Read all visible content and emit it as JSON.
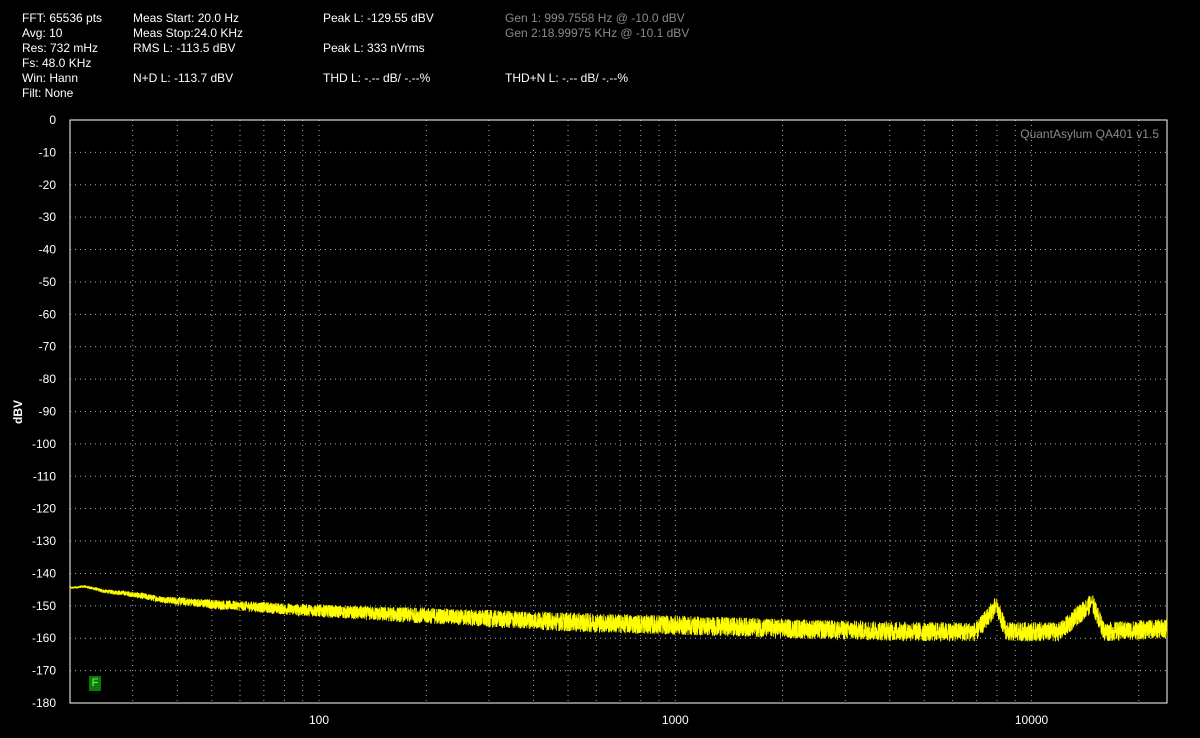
{
  "stats": {
    "fft": "FFT: 65536 pts",
    "avg": "Avg: 10",
    "res": "Res: 732 mHz",
    "fs": "Fs: 48.0 KHz",
    "win": "Win: Hann",
    "filt": "Filt: None",
    "meas_start": "Meas Start: 20.0 Hz",
    "meas_stop": "Meas Stop:24.0 KHz",
    "rms": "RMS L: -113.5 dBV",
    "nd": "N+D L: -113.7 dBV",
    "peak_db": "Peak L: -129.55 dBV",
    "peak_v": "Peak L: 333 nVrms",
    "thd": "THD L: -.-- dB/ -.--%",
    "thdn": "THD+N L: -.-- dB/ -.--%",
    "gen1": "Gen 1: 999.7558 Hz @ -10.0  dBV",
    "gen2": "Gen 2:18.99975 KHz @ -10.1  dBV"
  },
  "watermark": "QuantAsylum QA401 v1.5",
  "badge": "F",
  "colors": {
    "trace": "#ffff00",
    "grid": "#b0b0b0",
    "frame": "#ffffff",
    "badge": "#0a7a0a"
  },
  "chart_data": {
    "type": "line",
    "xscale": "log",
    "xlim": [
      20,
      24000
    ],
    "ylim": [
      -180,
      0
    ],
    "ylabel": "dBV",
    "xticks": [
      {
        "value": 100,
        "label": "100"
      },
      {
        "value": 1000,
        "label": "1000"
      },
      {
        "value": 10000,
        "label": "10000"
      }
    ],
    "yticks": [
      0,
      -10,
      -20,
      -30,
      -40,
      -50,
      -60,
      -70,
      -80,
      -90,
      -100,
      -110,
      -120,
      -130,
      -140,
      -150,
      -160,
      -170,
      -180
    ],
    "grid": true,
    "series": [
      {
        "x": [
          20,
          22,
          25,
          28,
          32,
          36,
          40,
          45,
          50,
          60,
          70,
          80,
          100,
          120,
          150,
          200,
          250,
          300,
          400,
          500,
          700,
          1000,
          1500,
          2000,
          3000,
          5000,
          7000,
          7950,
          8500,
          10000,
          12000,
          14800,
          16000,
          20000,
          24000
        ],
        "y": [
          -144.5,
          -144,
          -145.5,
          -146,
          -147,
          -148,
          -148.5,
          -149,
          -149.5,
          -150,
          -150.5,
          -151,
          -151.5,
          -152,
          -152.5,
          -153,
          -153.5,
          -154,
          -154.5,
          -155,
          -155.5,
          -156,
          -156.5,
          -157,
          -157.5,
          -158,
          -158,
          -150,
          -158,
          -158,
          -158,
          -149,
          -158,
          -157.5,
          -157
        ],
        "spread": [
          0.5,
          0.8,
          1.2,
          1.5,
          2,
          2,
          2.5,
          2.5,
          3,
          3,
          3.5,
          3.5,
          4,
          4,
          4.5,
          5,
          5,
          5.5,
          5.5,
          6,
          6,
          6,
          6,
          6,
          6,
          6,
          6,
          6,
          6,
          6,
          6,
          6,
          6,
          6,
          6
        ]
      }
    ]
  }
}
